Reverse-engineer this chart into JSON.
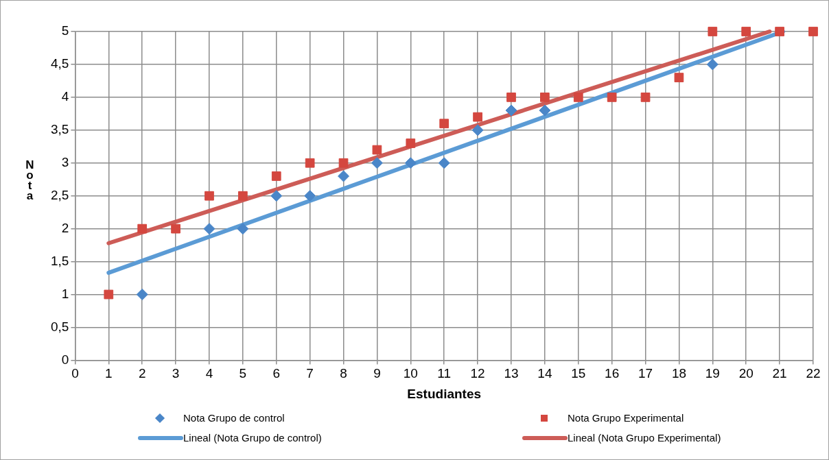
{
  "chart_data": {
    "type": "scatter",
    "xlabel": "Estudiantes",
    "ylabel": "Nota",
    "xlim": [
      0,
      22
    ],
    "xticks": [
      0,
      1,
      2,
      3,
      4,
      5,
      6,
      7,
      8,
      9,
      10,
      11,
      12,
      13,
      14,
      15,
      16,
      17,
      18,
      19,
      20,
      21,
      22
    ],
    "ylim": [
      0,
      5
    ],
    "yticks": [
      0,
      {
        "value": 0.5,
        "label": "0,5"
      },
      1,
      {
        "value": 1.5,
        "label": "1,5"
      },
      2,
      {
        "value": 2.5,
        "label": "2,5"
      },
      3,
      {
        "value": 3.5,
        "label": "3,5"
      },
      4,
      {
        "value": 4.5,
        "label": "4,5"
      },
      5
    ],
    "grid": true,
    "legend": "bottom",
    "series": [
      {
        "name": "Nota Grupo de control",
        "marker": "diamond",
        "color": "#4a86c8",
        "x": [
          2,
          4,
          5,
          6,
          7,
          8,
          9,
          10,
          11,
          12,
          13,
          14,
          19
        ],
        "values": [
          1,
          2,
          2,
          2.5,
          2.5,
          2.8,
          3,
          3,
          3,
          3.5,
          3.8,
          3.8,
          4.5
        ]
      },
      {
        "name": "Nota Grupo Experimental",
        "marker": "square",
        "color": "#d4473f",
        "x": [
          1,
          2,
          3,
          4,
          5,
          6,
          7,
          8,
          9,
          10,
          11,
          12,
          13,
          14,
          15,
          16,
          17,
          18,
          19,
          20,
          21,
          22
        ],
        "values": [
          1,
          2,
          2,
          2.5,
          2.5,
          2.8,
          3,
          3,
          3.2,
          3.3,
          3.6,
          3.7,
          4,
          4,
          4,
          4,
          4,
          4.3,
          5,
          5,
          5,
          5
        ]
      },
      {
        "name": "Lineal (Nota Grupo de control)",
        "type": "line",
        "marker": "none",
        "color": "#5b9bd5",
        "x": [
          1,
          21.1
        ],
        "values": [
          1.33,
          5
        ]
      },
      {
        "name": "Lineal (Nota Grupo Experimental)",
        "type": "line",
        "marker": "none",
        "color": "#cd5c57",
        "x": [
          1,
          20.7
        ],
        "values": [
          1.78,
          5
        ]
      }
    ]
  }
}
